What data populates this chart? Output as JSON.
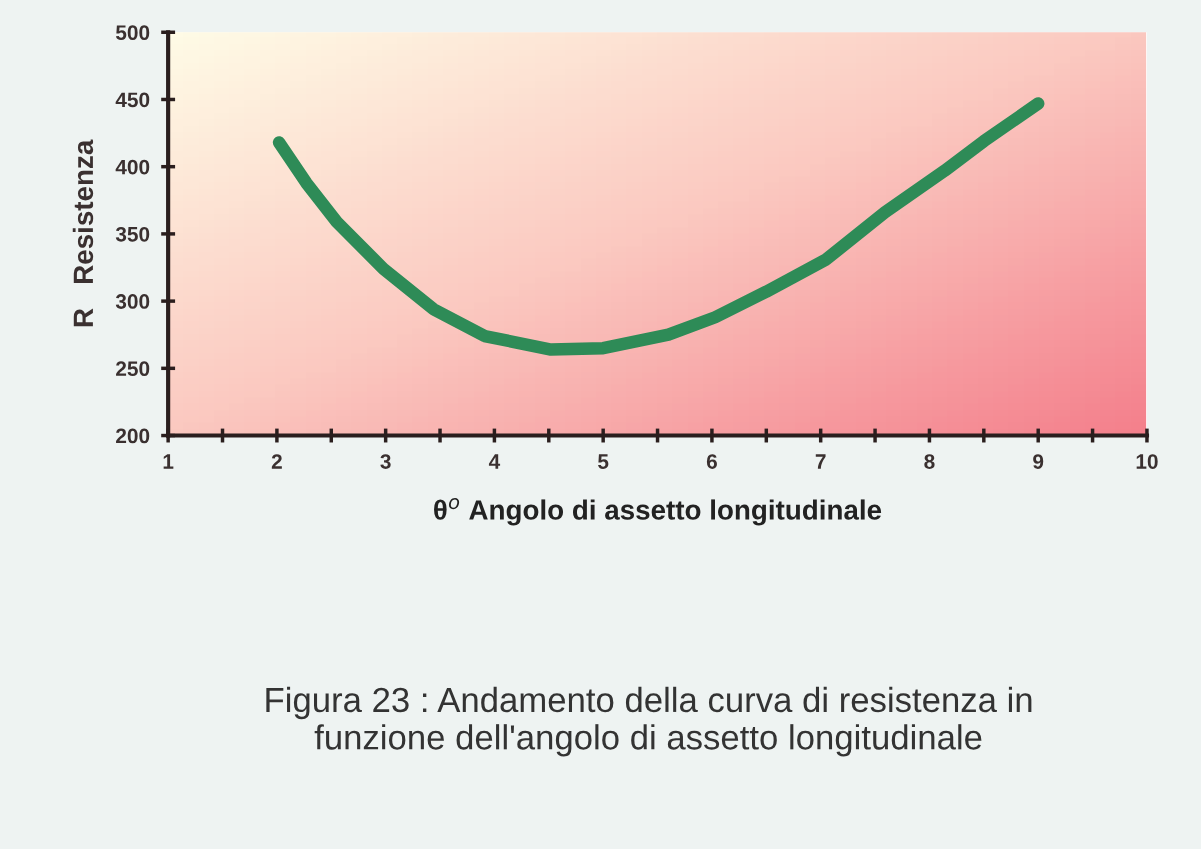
{
  "chart_data": {
    "type": "line",
    "xlabel": "θ$^{o}$ Angolo di assetto longitudinale",
    "ylabel": "R   Resistenza",
    "annotations": [
      "Figura 23 : Andamento della curva di resistenza in\nfunzione dell'angolo di assetto longitudinale"
    ],
    "x": [
      2.02,
      2.27,
      2.55,
      2.98,
      3.44,
      3.91,
      4.52,
      5.0,
      5.6,
      6.03,
      6.5,
      7.05,
      7.59,
      8.14,
      8.5,
      9.0
    ],
    "series": [
      {
        "color": "#2e8b57",
        "values": [
          418,
          388,
          359,
          324,
          294,
          274,
          264,
          265,
          275,
          288,
          307,
          331,
          366,
          397,
          419,
          447
        ]
      }
    ],
    "xlim": [
      1,
      10
    ],
    "xticks": [
      1,
      {
        "value": 1.5,
        "label": null
      },
      2,
      {
        "value": 2.5,
        "label": null
      },
      3,
      {
        "value": 3.5,
        "label": null
      },
      4,
      {
        "value": 4.5,
        "label": null
      },
      5,
      {
        "value": 5.5,
        "label": null
      },
      6,
      {
        "value": 6.5,
        "label": null
      },
      7,
      {
        "value": 7.5,
        "label": null
      },
      8,
      {
        "value": 8.5,
        "label": null
      },
      9,
      {
        "value": 9.5,
        "label": null
      },
      10
    ],
    "ylim": [
      200,
      500
    ],
    "yticks": [
      200,
      250,
      300,
      350,
      400,
      450,
      500
    ],
    "grid": false,
    "legend": false,
    "line_style": "solid"
  }
}
